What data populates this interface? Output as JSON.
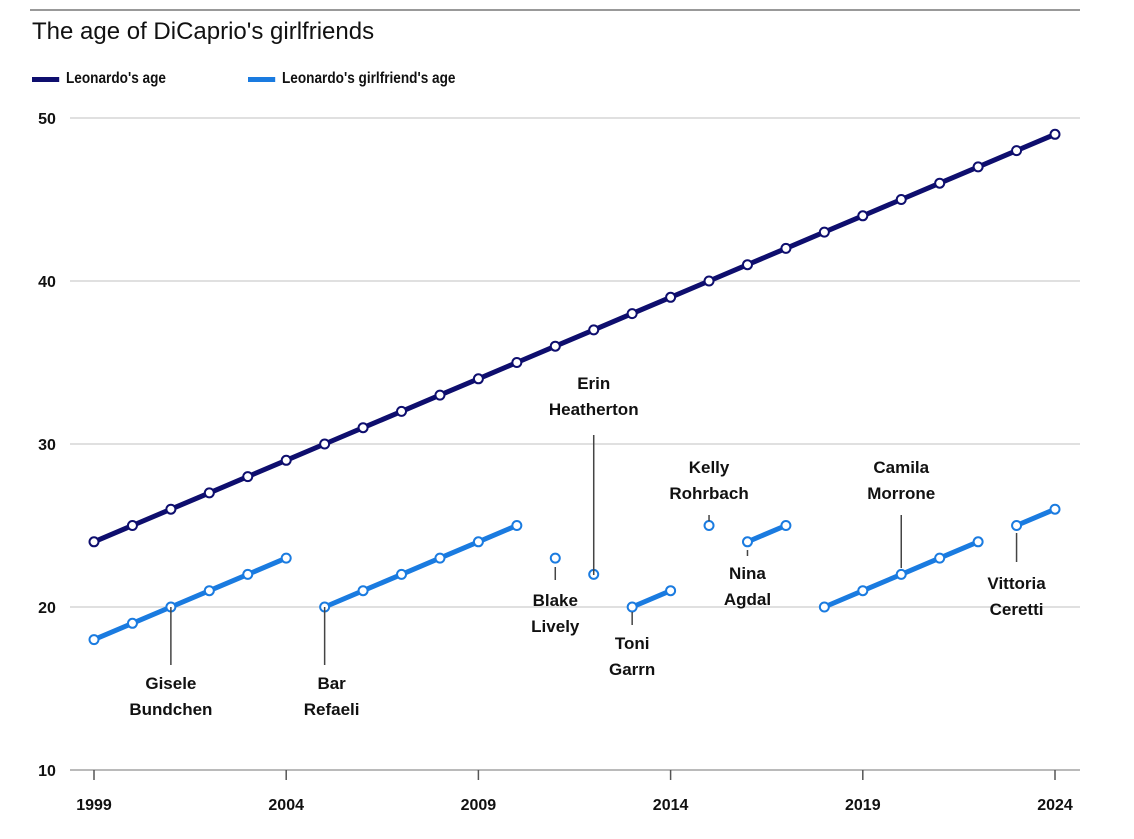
{
  "chart_data": {
    "type": "line",
    "title": "The age of DiCaprio's girlfriends",
    "xlabel": "",
    "ylabel": "",
    "xlim": [
      1999,
      2024
    ],
    "ylim": [
      10,
      50
    ],
    "yticks": [
      10,
      20,
      30,
      40,
      50
    ],
    "xticks": [
      1999,
      2004,
      2009,
      2014,
      2019,
      2024
    ],
    "grid": true,
    "legend_position": "top-left",
    "colors": {
      "leo": "#0e0e6e",
      "girlfriend": "#1a7be0"
    },
    "legend": [
      "Leonardo's age",
      "Leonardo's girlfriend's age"
    ],
    "leonardo": {
      "name": "Leonardo's age",
      "x": [
        1999,
        2000,
        2001,
        2002,
        2003,
        2004,
        2005,
        2006,
        2007,
        2008,
        2009,
        2010,
        2011,
        2012,
        2013,
        2014,
        2015,
        2016,
        2017,
        2018,
        2019,
        2020,
        2021,
        2022,
        2023,
        2024
      ],
      "y": [
        24,
        25,
        26,
        27,
        28,
        29,
        30,
        31,
        32,
        33,
        34,
        35,
        36,
        37,
        38,
        39,
        40,
        41,
        42,
        43,
        44,
        45,
        46,
        47,
        48,
        49
      ]
    },
    "girlfriends": [
      {
        "name": [
          "Gisele",
          "Bundchen"
        ],
        "x": [
          1999,
          2000,
          2001,
          2002,
          2003,
          2004
        ],
        "y": [
          18,
          19,
          20,
          21,
          22,
          23
        ],
        "anchor": 2001
      },
      {
        "name": [
          "Bar",
          "Refaeli"
        ],
        "x": [
          2005,
          2006,
          2007,
          2008,
          2009,
          2010
        ],
        "y": [
          20,
          21,
          22,
          23,
          24,
          25
        ],
        "anchor": 2005
      },
      {
        "name": [
          "Blake",
          "Lively"
        ],
        "x": [
          2011
        ],
        "y": [
          23
        ],
        "anchor": 2011
      },
      {
        "name": [
          "Erin",
          "Heatherton"
        ],
        "x": [
          2012
        ],
        "y": [
          22
        ],
        "anchor": 2012
      },
      {
        "name": [
          "Toni",
          "Garrn"
        ],
        "x": [
          2013,
          2014
        ],
        "y": [
          20,
          21
        ],
        "anchor": 2013
      },
      {
        "name": [
          "Kelly",
          "Rohrbach"
        ],
        "x": [
          2015
        ],
        "y": [
          25
        ],
        "anchor": 2015
      },
      {
        "name": [
          "Nina",
          "Agdal"
        ],
        "x": [
          2016,
          2017
        ],
        "y": [
          24,
          25
        ],
        "anchor": 2016
      },
      {
        "name": [
          "Camila",
          "Morrone"
        ],
        "x": [
          2018,
          2019,
          2020,
          2021,
          2022
        ],
        "y": [
          20,
          21,
          22,
          23,
          24
        ],
        "anchor": 2020
      },
      {
        "name": [
          "Vittoria",
          "Ceretti"
        ],
        "x": [
          2023,
          2024
        ],
        "y": [
          25,
          26
        ],
        "anchor": 2023
      }
    ]
  }
}
